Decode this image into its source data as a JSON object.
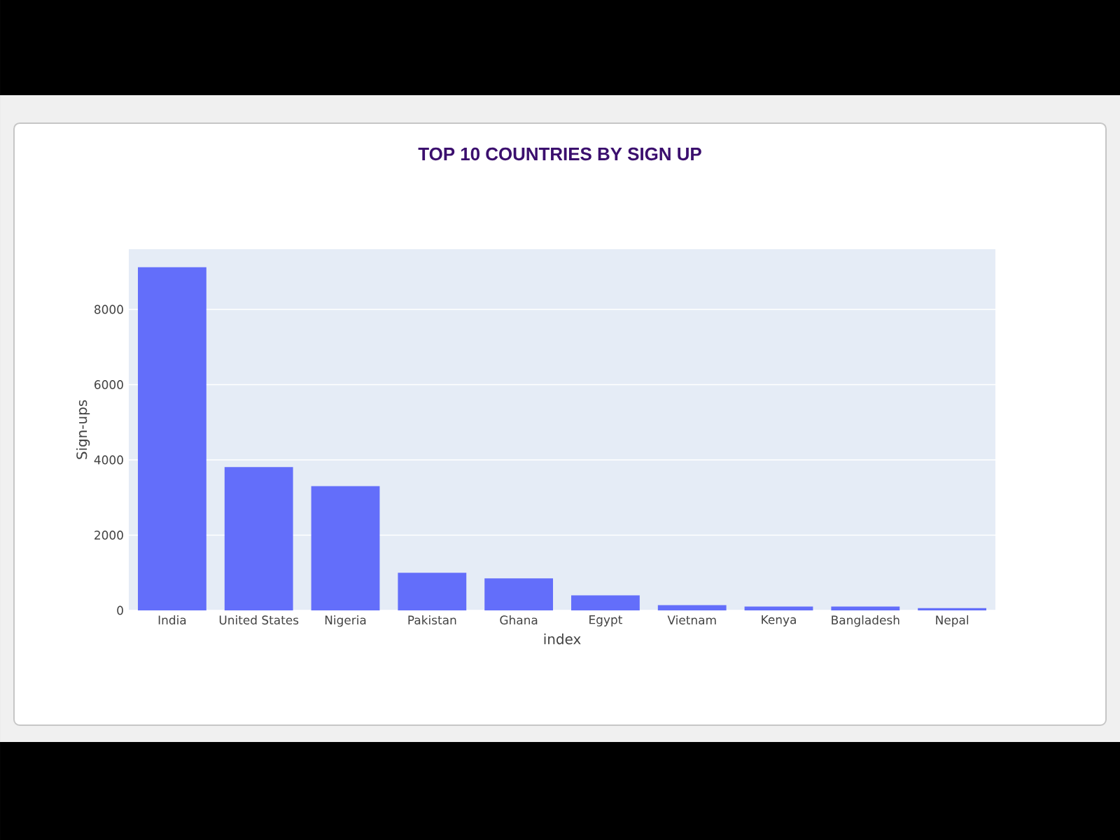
{
  "chart_data": {
    "type": "bar",
    "title": "TOP 10 COUNTRIES BY SIGN UP",
    "xlabel": "index",
    "ylabel": "Sign-ups",
    "categories": [
      "India",
      "United States",
      "Nigeria",
      "Pakistan",
      "Ghana",
      "Egypt",
      "Vietnam",
      "Kenya",
      "Bangladesh",
      "Nepal"
    ],
    "values": [
      9120,
      3810,
      3300,
      1000,
      850,
      400,
      140,
      100,
      100,
      60
    ],
    "color": "#636efa",
    "ylim": [
      0,
      9600
    ],
    "yticks": [
      0,
      2000,
      4000,
      6000,
      8000
    ],
    "grid": "y"
  }
}
